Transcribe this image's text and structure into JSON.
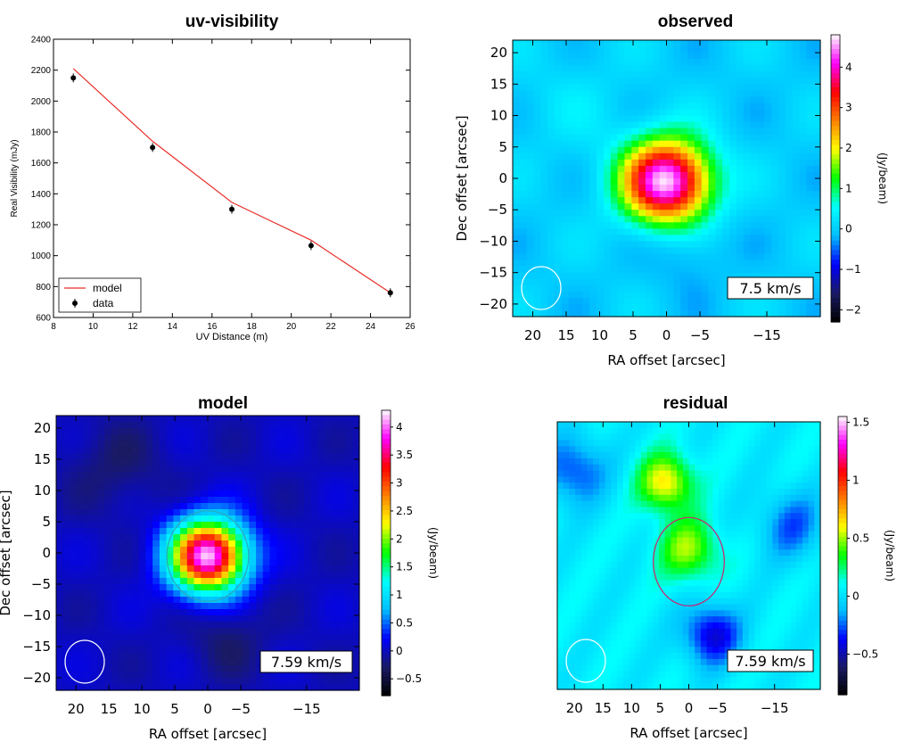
{
  "chart_data": [
    {
      "type": "scatter",
      "title": "uv-visibility",
      "xlabel": "UV Distance (m)",
      "ylabel": "Real Visibility (mJy)",
      "xlim": [
        8,
        26
      ],
      "ylim": [
        600,
        2400
      ],
      "xticks": [
        8,
        10,
        12,
        14,
        16,
        18,
        20,
        22,
        24,
        26
      ],
      "yticks": [
        600,
        800,
        1000,
        1200,
        1400,
        1600,
        1800,
        2000,
        2200,
        2400
      ],
      "series": [
        {
          "name": "model",
          "kind": "line",
          "color": "#e8302a",
          "x": [
            9,
            13,
            17,
            21,
            25
          ],
          "y": [
            2210,
            1740,
            1345,
            1100,
            760
          ]
        },
        {
          "name": "data",
          "kind": "points",
          "color": "#000000",
          "x": [
            9,
            13,
            17,
            21,
            25
          ],
          "y": [
            2150,
            1700,
            1300,
            1065,
            760
          ]
        }
      ],
      "legend": "lower-left",
      "grid": false
    },
    {
      "type": "heatmap",
      "title": "observed",
      "xlabel": "RA offset [arcsec]",
      "ylabel": "Dec offset [arcsec]",
      "colorbar_label": "(Jy/beam)",
      "xlim": [
        23,
        -23
      ],
      "ylim": [
        -22,
        22
      ],
      "xtick_labels": [
        "20",
        "15",
        "10",
        "5",
        "0",
        "−5",
        "−15"
      ],
      "xtick_values": [
        20,
        15,
        10,
        5,
        0,
        -5,
        -15
      ],
      "ytick_labels": [
        "20",
        "15",
        "10",
        "5",
        "0",
        "−5",
        "−10",
        "−15",
        "−20"
      ],
      "ytick_values": [
        20,
        15,
        10,
        5,
        0,
        -5,
        -10,
        -15,
        -20
      ],
      "colorbar_range": [
        -2.3,
        4.8
      ],
      "colorbar_tick_labels": [
        "4",
        "3",
        "2",
        "1",
        "0",
        "−1",
        "−2"
      ],
      "colorbar_tick_values": [
        4,
        3,
        2,
        1,
        0,
        -1,
        -2
      ],
      "velocity_label": "7.5 km/s",
      "source_center": [
        0,
        -0.5
      ],
      "peak": 4.7
    },
    {
      "type": "heatmap",
      "title": "model",
      "xlabel": "RA offset [arcsec]",
      "ylabel": "Dec offset [arcsec]",
      "colorbar_label": "(Jy/beam)",
      "xlim": [
        23,
        -23
      ],
      "ylim": [
        -22,
        22
      ],
      "xtick_labels": [
        "20",
        "15",
        "10",
        "5",
        "0",
        "−5",
        "−15"
      ],
      "xtick_values": [
        20,
        15,
        10,
        5,
        0,
        -5,
        -15
      ],
      "ytick_labels": [
        "20",
        "15",
        "10",
        "5",
        "0",
        "−5",
        "−10",
        "−15",
        "−20"
      ],
      "ytick_values": [
        20,
        15,
        10,
        5,
        0,
        -5,
        -10,
        -15,
        -20
      ],
      "colorbar_range": [
        -0.8,
        4.3
      ],
      "colorbar_tick_labels": [
        "4",
        "3.5",
        "3",
        "2.5",
        "2",
        "1.5",
        "1",
        "0.5",
        "0",
        "−0.5"
      ],
      "colorbar_tick_values": [
        4,
        3.5,
        3,
        2.5,
        2,
        1.5,
        1,
        0.5,
        0,
        -0.5
      ],
      "velocity_label": "7.59 km/s",
      "source_center": [
        0,
        -0.5
      ],
      "peak": 4.2
    },
    {
      "type": "heatmap",
      "title": "residual",
      "xlabel": "RA offset [arcsec]",
      "ylabel": "Dec offset [arcsec]",
      "colorbar_label": "(Jy/beam)",
      "xlim": [
        23,
        -23
      ],
      "ylim": [
        -22,
        22
      ],
      "xtick_labels": [
        "20",
        "15",
        "10",
        "5",
        "0",
        "−5",
        "−15"
      ],
      "xtick_values": [
        20,
        15,
        10,
        5,
        0,
        -5,
        -15
      ],
      "colorbar_range": [
        -0.85,
        1.55
      ],
      "colorbar_tick_labels": [
        "1.5",
        "1",
        "0.5",
        "0",
        "−0.5"
      ],
      "colorbar_tick_values": [
        1.5,
        1,
        0.5,
        0,
        -0.5
      ],
      "velocity_label": "7.59 km/s",
      "source_center": [
        0,
        -1
      ],
      "peak": 0.7
    }
  ],
  "colors": {
    "jet_stops": [
      "#000000",
      "#1a1a66",
      "#0000ff",
      "#00bfff",
      "#00ffff",
      "#00ff00",
      "#ffff00",
      "#ff8000",
      "#ff0000",
      "#ff00ff",
      "#ffffff"
    ]
  }
}
